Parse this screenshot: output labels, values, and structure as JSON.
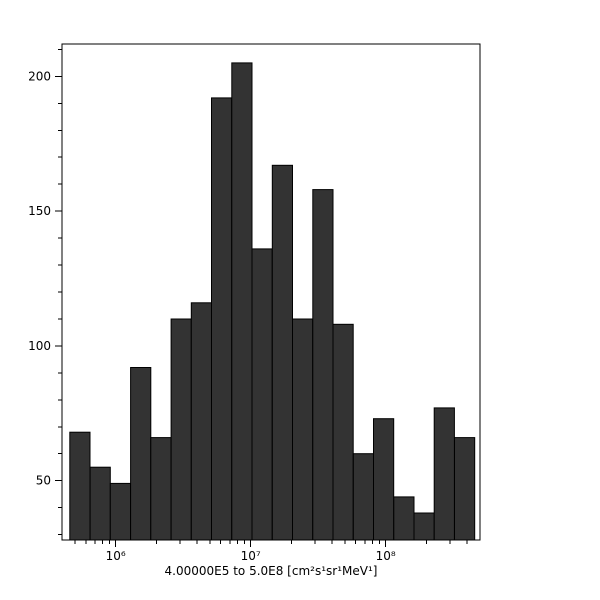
{
  "chart_data": {
    "type": "bar",
    "subtype": "histogram",
    "title": "",
    "xlabel": "4.00000E5 to 5.0E8 [cm²s¹sr¹MeV¹]",
    "ylabel": "",
    "xscale": "log",
    "yscale": "linear",
    "xlim": [
      400000.0,
      500000000.0
    ],
    "ylim": [
      28,
      212
    ],
    "grid": false,
    "legend": false,
    "x_tick_values": [
      1000000.0,
      10000000.0,
      100000000.0
    ],
    "x_tick_labels": [
      "10⁶",
      "10⁷",
      "10⁸"
    ],
    "y_tick_values": [
      50,
      100,
      150,
      200
    ],
    "y_tick_labels": [
      "50",
      "100",
      "150",
      "200"
    ],
    "y_minor_step": 10,
    "bin_edges_log10": [
      5.66,
      5.81,
      5.96,
      6.11,
      6.26,
      6.41,
      6.56,
      6.71,
      6.86,
      7.01,
      7.16,
      7.31,
      7.46,
      7.61,
      7.76,
      7.91,
      8.06,
      8.21,
      8.36,
      8.51,
      8.66
    ],
    "counts": [
      68,
      55,
      49,
      92,
      66,
      110,
      116,
      192,
      205,
      136,
      167,
      110,
      158,
      108,
      60,
      73,
      44,
      38,
      77,
      66
    ],
    "colors": {
      "bar_fill": "#333333",
      "bar_stroke": "#000000",
      "axis": "#000000",
      "background": "#ffffff"
    }
  }
}
